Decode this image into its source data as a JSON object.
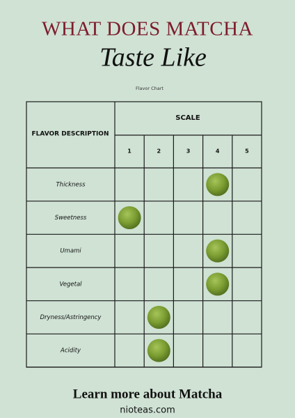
{
  "header": {
    "title": "WHAT DOES MATCHA",
    "script": "Taste Like",
    "subtitle": "Flavor Chart"
  },
  "table": {
    "corner": "FLAVOR DESCRIPTION",
    "scale_label": "SCALE",
    "scale": [
      1,
      2,
      3,
      4,
      5
    ],
    "rows": [
      {
        "name": "Thickness",
        "rating": 4
      },
      {
        "name": "Sweetness",
        "rating": 1
      },
      {
        "name": "Umami",
        "rating": 4
      },
      {
        "name": "Vegetal",
        "rating": 4
      },
      {
        "name": "Dryness/Astringency",
        "rating": 2
      },
      {
        "name": "Acidity",
        "rating": 2
      }
    ]
  },
  "footer": {
    "cta": "Learn more about Matcha",
    "url": "nioteas.com"
  }
}
